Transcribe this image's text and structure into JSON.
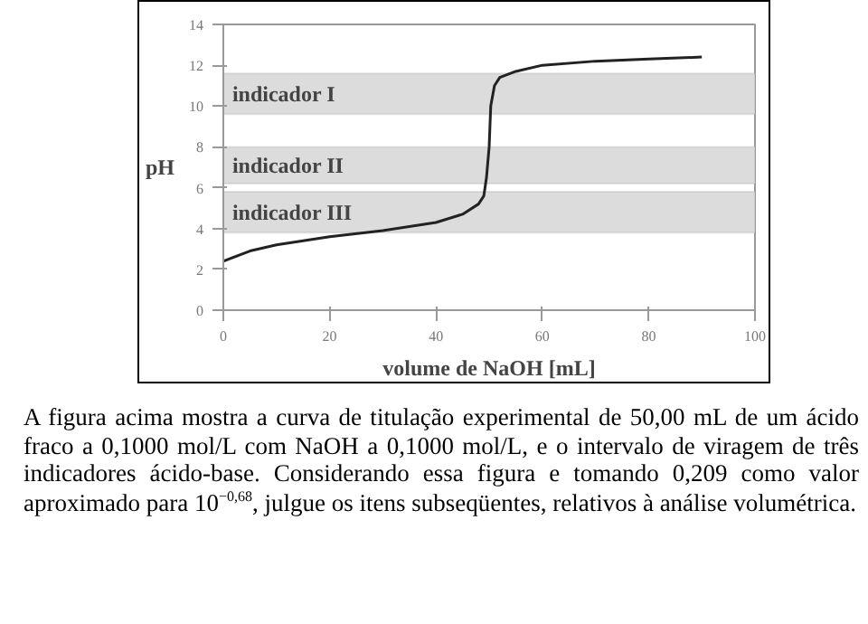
{
  "chart_data": {
    "type": "line",
    "xlabel": "volume de NaOH [mL]",
    "ylabel": "pH",
    "x": [
      0,
      5,
      10,
      20,
      30,
      40,
      45,
      48,
      49,
      49.5,
      50,
      50.3,
      51,
      52,
      55,
      60,
      70,
      80,
      90
    ],
    "series": [
      {
        "color": "#222222",
        "values": [
          2.4,
          2.9,
          3.2,
          3.6,
          3.9,
          4.3,
          4.7,
          5.2,
          5.6,
          6.5,
          8,
          10,
          11,
          11.4,
          11.7,
          12.0,
          12.2,
          12.3,
          12.4
        ]
      }
    ],
    "xlim": [
      0,
      100
    ],
    "xticks": [
      0,
      20,
      40,
      60,
      80,
      100
    ],
    "ylim": [
      0,
      14
    ],
    "yticks": [
      0,
      2,
      4,
      6,
      8,
      10,
      12,
      14
    ],
    "bands": [
      {
        "axis": "y",
        "from": 9.6,
        "to": 11.6,
        "label": "indicador I",
        "color": "#dcdcdc"
      },
      {
        "axis": "y",
        "from": 6.2,
        "to": 8.0,
        "label": "indicador II",
        "color": "#dcdcdc"
      },
      {
        "axis": "y",
        "from": 3.8,
        "to": 5.8,
        "label": "indicador III",
        "color": "#dcdcdc"
      }
    ],
    "grid": false,
    "marker": "none",
    "line_style": "solid",
    "annotations": [
      "A figura acima mostra a curva de titulação experimental de 50,00 mL de um ácido fraco a 0,1000 mol/L com NaOH a 0,1000 mol/L, e o intervalo de viragem de três indicadores ácido-base. Considerando essa figura e tomando 0,209 como valor aproximado para 10$^{−0,68}$, julgue os itens subseqüentes, relativos à análise volumétrica."
    ]
  }
}
